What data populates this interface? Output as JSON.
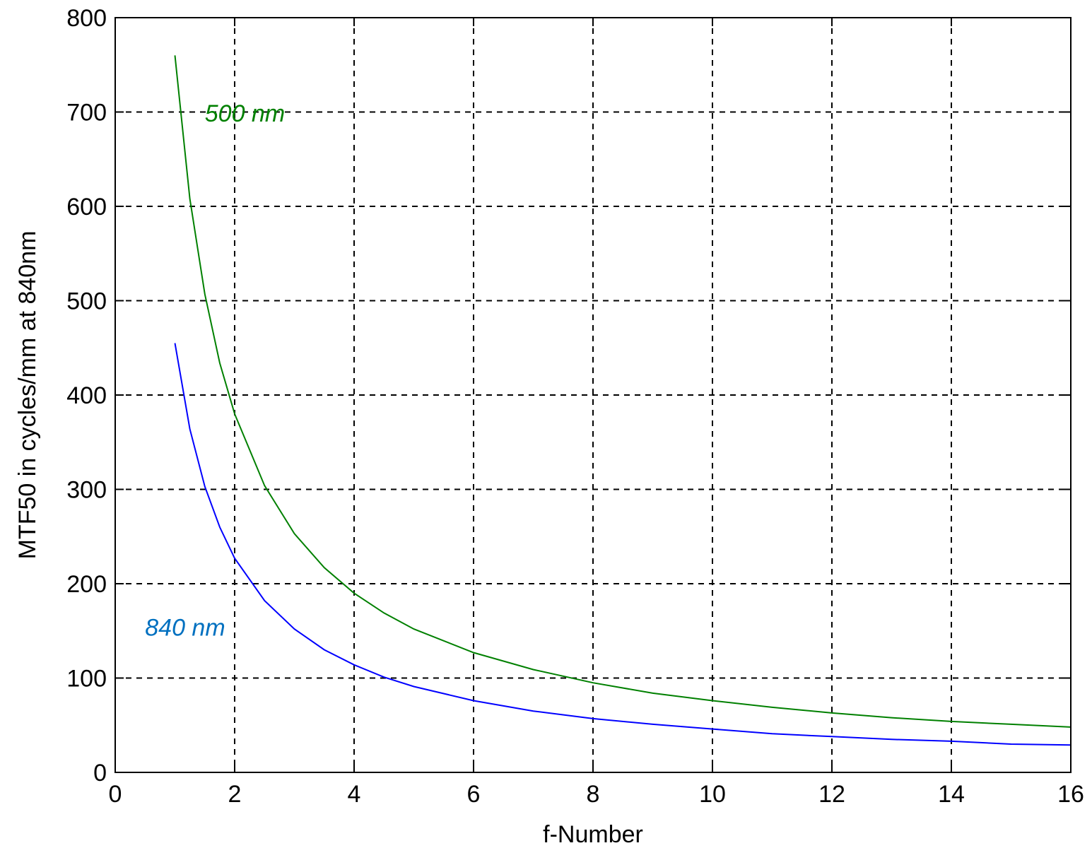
{
  "chart_data": {
    "type": "line",
    "title": "",
    "xlabel": "f-Number",
    "ylabel": "MTF50 in cycles/mm at 840nm",
    "xlim": [
      0,
      16
    ],
    "ylim": [
      0,
      800
    ],
    "x_ticks": [
      0,
      2,
      4,
      6,
      8,
      10,
      12,
      14,
      16
    ],
    "y_ticks": [
      0,
      100,
      200,
      300,
      400,
      500,
      600,
      700,
      800
    ],
    "x_tick_labels": [
      "0",
      "2",
      "4",
      "6",
      "8",
      "10",
      "12",
      "14",
      "16"
    ],
    "y_tick_labels": [
      "0",
      "100",
      "200",
      "300",
      "400",
      "500",
      "600",
      "700",
      "800"
    ],
    "grid": true,
    "legend": "none",
    "series": [
      {
        "color": "#008000",
        "x": [
          1,
          1.25,
          1.5,
          1.75,
          2,
          2.5,
          3,
          3.5,
          4,
          4.5,
          5,
          6,
          7,
          8,
          9,
          10,
          11,
          12,
          13,
          14,
          15,
          16
        ],
        "y": [
          760,
          608,
          507,
          434,
          380,
          304,
          253,
          217,
          190,
          169,
          152,
          127,
          109,
          95,
          84,
          76,
          69,
          63,
          58,
          54,
          51,
          48
        ]
      },
      {
        "color": "#0000ff",
        "x": [
          1,
          1.25,
          1.5,
          1.75,
          2,
          2.5,
          3,
          3.5,
          4,
          4.5,
          5,
          6,
          7,
          8,
          9,
          10,
          11,
          12,
          13,
          14,
          15,
          16
        ],
        "y": [
          455,
          364,
          303,
          260,
          227,
          182,
          152,
          130,
          114,
          101,
          91,
          76,
          65,
          57,
          51,
          46,
          41,
          38,
          35,
          33,
          30,
          29
        ]
      }
    ],
    "annotations": [
      {
        "text": "500 nm",
        "x": 1.5,
        "y": 690,
        "color": "#008000"
      },
      {
        "text": "840 nm",
        "x": 0.5,
        "y": 145,
        "color": "#0070c0"
      }
    ]
  }
}
